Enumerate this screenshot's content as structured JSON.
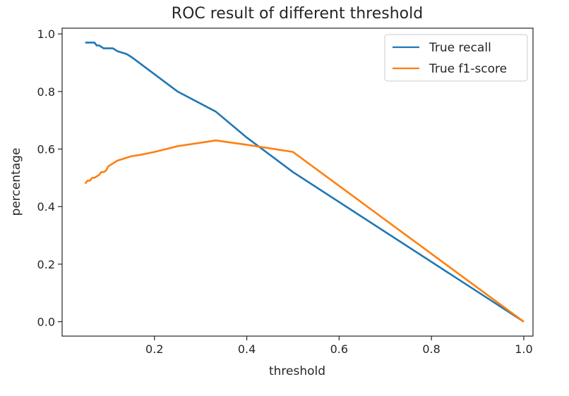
{
  "chart_data": {
    "type": "line",
    "title": "ROC result of different threshold",
    "xlabel": "threshold",
    "ylabel": "percentage",
    "xlim": [
      0.0,
      1.02
    ],
    "ylim": [
      -0.05,
      1.02
    ],
    "xticks": [
      0.2,
      0.4,
      0.6,
      0.8,
      1.0
    ],
    "xtick_labels": [
      "0.2",
      "0.4",
      "0.6",
      "0.8",
      "1.0"
    ],
    "yticks": [
      0.0,
      0.2,
      0.4,
      0.6,
      0.8,
      1.0
    ],
    "ytick_labels": [
      "0.0",
      "0.2",
      "0.4",
      "0.6",
      "0.8",
      "1.0"
    ],
    "grid": false,
    "legend": "upper-right",
    "series": [
      {
        "name": "True recall",
        "color": "#1f77b4",
        "x": [
          0.05,
          0.06,
          0.07,
          0.075,
          0.08,
          0.09,
          0.1,
          0.11,
          0.12,
          0.13,
          0.14,
          0.15,
          0.2,
          0.25,
          0.333,
          0.4,
          0.5,
          1.0
        ],
        "y": [
          0.97,
          0.97,
          0.97,
          0.96,
          0.96,
          0.95,
          0.95,
          0.95,
          0.94,
          0.935,
          0.93,
          0.92,
          0.86,
          0.8,
          0.73,
          0.64,
          0.52,
          0.0
        ]
      },
      {
        "name": "True f1-score",
        "color": "#ff7f0e",
        "x": [
          0.05,
          0.055,
          0.06,
          0.065,
          0.07,
          0.075,
          0.08,
          0.085,
          0.09,
          0.095,
          0.1,
          0.11,
          0.12,
          0.13,
          0.14,
          0.15,
          0.17,
          0.2,
          0.25,
          0.333,
          0.4,
          0.5,
          1.0
        ],
        "y": [
          0.48,
          0.49,
          0.49,
          0.5,
          0.5,
          0.505,
          0.51,
          0.52,
          0.52,
          0.525,
          0.54,
          0.55,
          0.56,
          0.565,
          0.57,
          0.575,
          0.58,
          0.59,
          0.61,
          0.63,
          0.615,
          0.59,
          0.0
        ]
      }
    ]
  }
}
